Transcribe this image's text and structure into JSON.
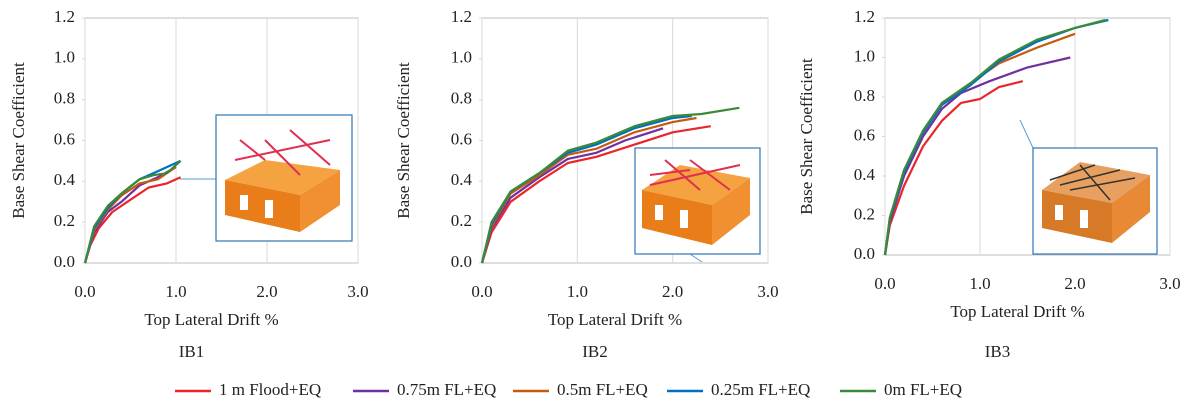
{
  "chart_data": [
    {
      "type": "line",
      "title": "IB1",
      "x_label": "Top Lateral Drift %",
      "y_label": "Base Shear Coefficient",
      "xlim": [
        0,
        3
      ],
      "ylim": [
        0,
        1.2
      ],
      "xticks": [
        {
          "value": 0,
          "label": "0.0"
        },
        {
          "value": 1,
          "label": "1.0"
        },
        {
          "value": 2,
          "label": "2.0"
        },
        {
          "value": 3,
          "label": "3.0"
        }
      ],
      "yticks": [
        {
          "value": 0,
          "label": "0.0"
        },
        0.2,
        0.4,
        0.6,
        0.8,
        {
          "value": 1,
          "label": "1.0"
        },
        1.2
      ],
      "grid": true,
      "series": [
        {
          "name": "1 m Flood+EQ",
          "color": "#e8262c",
          "x": [
            0,
            0.05,
            0.15,
            0.3,
            0.5,
            0.7,
            0.9,
            1.05
          ],
          "values": [
            0,
            0.08,
            0.17,
            0.25,
            0.31,
            0.37,
            0.39,
            0.42
          ]
        },
        {
          "name": "0.75m FL+EQ",
          "color": "#7030a0",
          "x": [
            0,
            0.1,
            0.25,
            0.4,
            0.6,
            0.8,
            1.0
          ],
          "values": [
            0,
            0.15,
            0.25,
            0.3,
            0.38,
            0.42,
            0.47
          ]
        },
        {
          "name": "0.5m FL+EQ",
          "color": "#c55a11",
          "x": [
            0,
            0.1,
            0.25,
            0.4,
            0.6,
            0.8,
            1.0
          ],
          "values": [
            0,
            0.16,
            0.26,
            0.33,
            0.39,
            0.41,
            0.47
          ]
        },
        {
          "name": "0.25m FL+EQ",
          "color": "#0070c0",
          "x": [
            0,
            0.1,
            0.25,
            0.4,
            0.6,
            0.75,
            1.05
          ],
          "values": [
            0,
            0.17,
            0.27,
            0.34,
            0.41,
            0.44,
            0.5
          ]
        },
        {
          "name": "0m FL+EQ",
          "color": "#3a8a3a",
          "x": [
            0,
            0.1,
            0.25,
            0.4,
            0.6,
            0.75,
            0.9,
            1.05
          ],
          "values": [
            0,
            0.18,
            0.28,
            0.34,
            0.41,
            0.43,
            0.44,
            0.5
          ]
        }
      ]
    },
    {
      "type": "line",
      "title": "IB2",
      "x_label": "Top Lateral Drift %",
      "y_label": "Base Shear Coefficient",
      "xlim": [
        0,
        3
      ],
      "ylim": [
        0,
        1.2
      ],
      "xticks": [
        {
          "value": 0,
          "label": "0.0"
        },
        {
          "value": 1,
          "label": "1.0"
        },
        {
          "value": 2,
          "label": "2.0"
        },
        {
          "value": 3,
          "label": "3.0"
        }
      ],
      "yticks": [
        {
          "value": 0,
          "label": "0.0"
        },
        0.2,
        0.4,
        0.6,
        0.8,
        {
          "value": 1,
          "label": "1.0"
        },
        1.2
      ],
      "grid": true,
      "series": [
        {
          "name": "1 m Flood+EQ",
          "color": "#e8262c",
          "x": [
            0,
            0.1,
            0.3,
            0.6,
            0.9,
            1.2,
            1.6,
            2.0,
            2.4
          ],
          "values": [
            0,
            0.15,
            0.3,
            0.4,
            0.49,
            0.52,
            0.58,
            0.64,
            0.67
          ]
        },
        {
          "name": "0.75m FL+EQ",
          "color": "#7030a0",
          "x": [
            0,
            0.1,
            0.3,
            0.6,
            0.9,
            1.2,
            1.5,
            1.9
          ],
          "values": [
            0,
            0.17,
            0.32,
            0.42,
            0.51,
            0.54,
            0.6,
            0.66
          ]
        },
        {
          "name": "0.5m FL+EQ",
          "color": "#c55a11",
          "x": [
            0,
            0.1,
            0.3,
            0.6,
            0.9,
            1.2,
            1.6,
            2.0,
            2.25
          ],
          "values": [
            0,
            0.18,
            0.34,
            0.43,
            0.53,
            0.56,
            0.64,
            0.69,
            0.71
          ]
        },
        {
          "name": "0.25m FL+EQ",
          "color": "#0070c0",
          "x": [
            0,
            0.1,
            0.3,
            0.6,
            0.9,
            1.2,
            1.6,
            2.0,
            2.2
          ],
          "values": [
            0,
            0.19,
            0.35,
            0.44,
            0.54,
            0.58,
            0.66,
            0.71,
            0.72
          ]
        },
        {
          "name": "0m FL+EQ",
          "color": "#3a8a3a",
          "x": [
            0,
            0.1,
            0.3,
            0.6,
            0.9,
            1.2,
            1.6,
            2.0,
            2.3,
            2.7
          ],
          "values": [
            0,
            0.2,
            0.35,
            0.44,
            0.55,
            0.59,
            0.67,
            0.72,
            0.73,
            0.76
          ]
        }
      ]
    },
    {
      "type": "line",
      "title": "IB3",
      "x_label": "Top Lateral Drift %",
      "y_label": "Base Shear Coefficient",
      "xlim": [
        0,
        3
      ],
      "ylim": [
        0,
        1.2
      ],
      "xticks": [
        {
          "value": 0,
          "label": "0.0"
        },
        {
          "value": 1,
          "label": "1.0"
        },
        {
          "value": 2,
          "label": "2.0"
        },
        {
          "value": 3,
          "label": "3.0"
        }
      ],
      "yticks": [
        {
          "value": 0,
          "label": "0.0"
        },
        0.2,
        0.4,
        0.6,
        0.8,
        {
          "value": 1,
          "label": "1.0"
        },
        1.2
      ],
      "grid": true,
      "series": [
        {
          "name": "1 m Flood+EQ",
          "color": "#e8262c",
          "x": [
            0,
            0.05,
            0.2,
            0.4,
            0.6,
            0.8,
            1.0,
            1.2,
            1.45
          ],
          "values": [
            0,
            0.15,
            0.35,
            0.55,
            0.68,
            0.77,
            0.79,
            0.85,
            0.88
          ]
        },
        {
          "name": "0.75m FL+EQ",
          "color": "#7030a0",
          "x": [
            0,
            0.05,
            0.2,
            0.4,
            0.6,
            0.8,
            1.1,
            1.5,
            1.95
          ],
          "values": [
            0,
            0.17,
            0.4,
            0.6,
            0.74,
            0.82,
            0.88,
            0.95,
            1.0
          ]
        },
        {
          "name": "0.5m FL+EQ",
          "color": "#c55a11",
          "x": [
            0,
            0.05,
            0.2,
            0.4,
            0.6,
            0.9,
            1.2,
            1.6,
            2.0
          ],
          "values": [
            0,
            0.18,
            0.42,
            0.62,
            0.77,
            0.87,
            0.97,
            1.05,
            1.12
          ]
        },
        {
          "name": "0.25m FL+EQ",
          "color": "#0070c0",
          "x": [
            0,
            0.05,
            0.2,
            0.4,
            0.6,
            0.9,
            1.2,
            1.6,
            2.0,
            2.35
          ],
          "values": [
            0,
            0.18,
            0.42,
            0.62,
            0.76,
            0.86,
            0.98,
            1.08,
            1.15,
            1.19
          ]
        },
        {
          "name": "0m FL+EQ",
          "color": "#3a8a3a",
          "x": [
            0,
            0.05,
            0.2,
            0.4,
            0.6,
            0.9,
            1.2,
            1.6,
            2.0,
            2.32
          ],
          "values": [
            0,
            0.19,
            0.43,
            0.63,
            0.77,
            0.87,
            0.99,
            1.09,
            1.15,
            1.19
          ]
        }
      ]
    }
  ]
}
